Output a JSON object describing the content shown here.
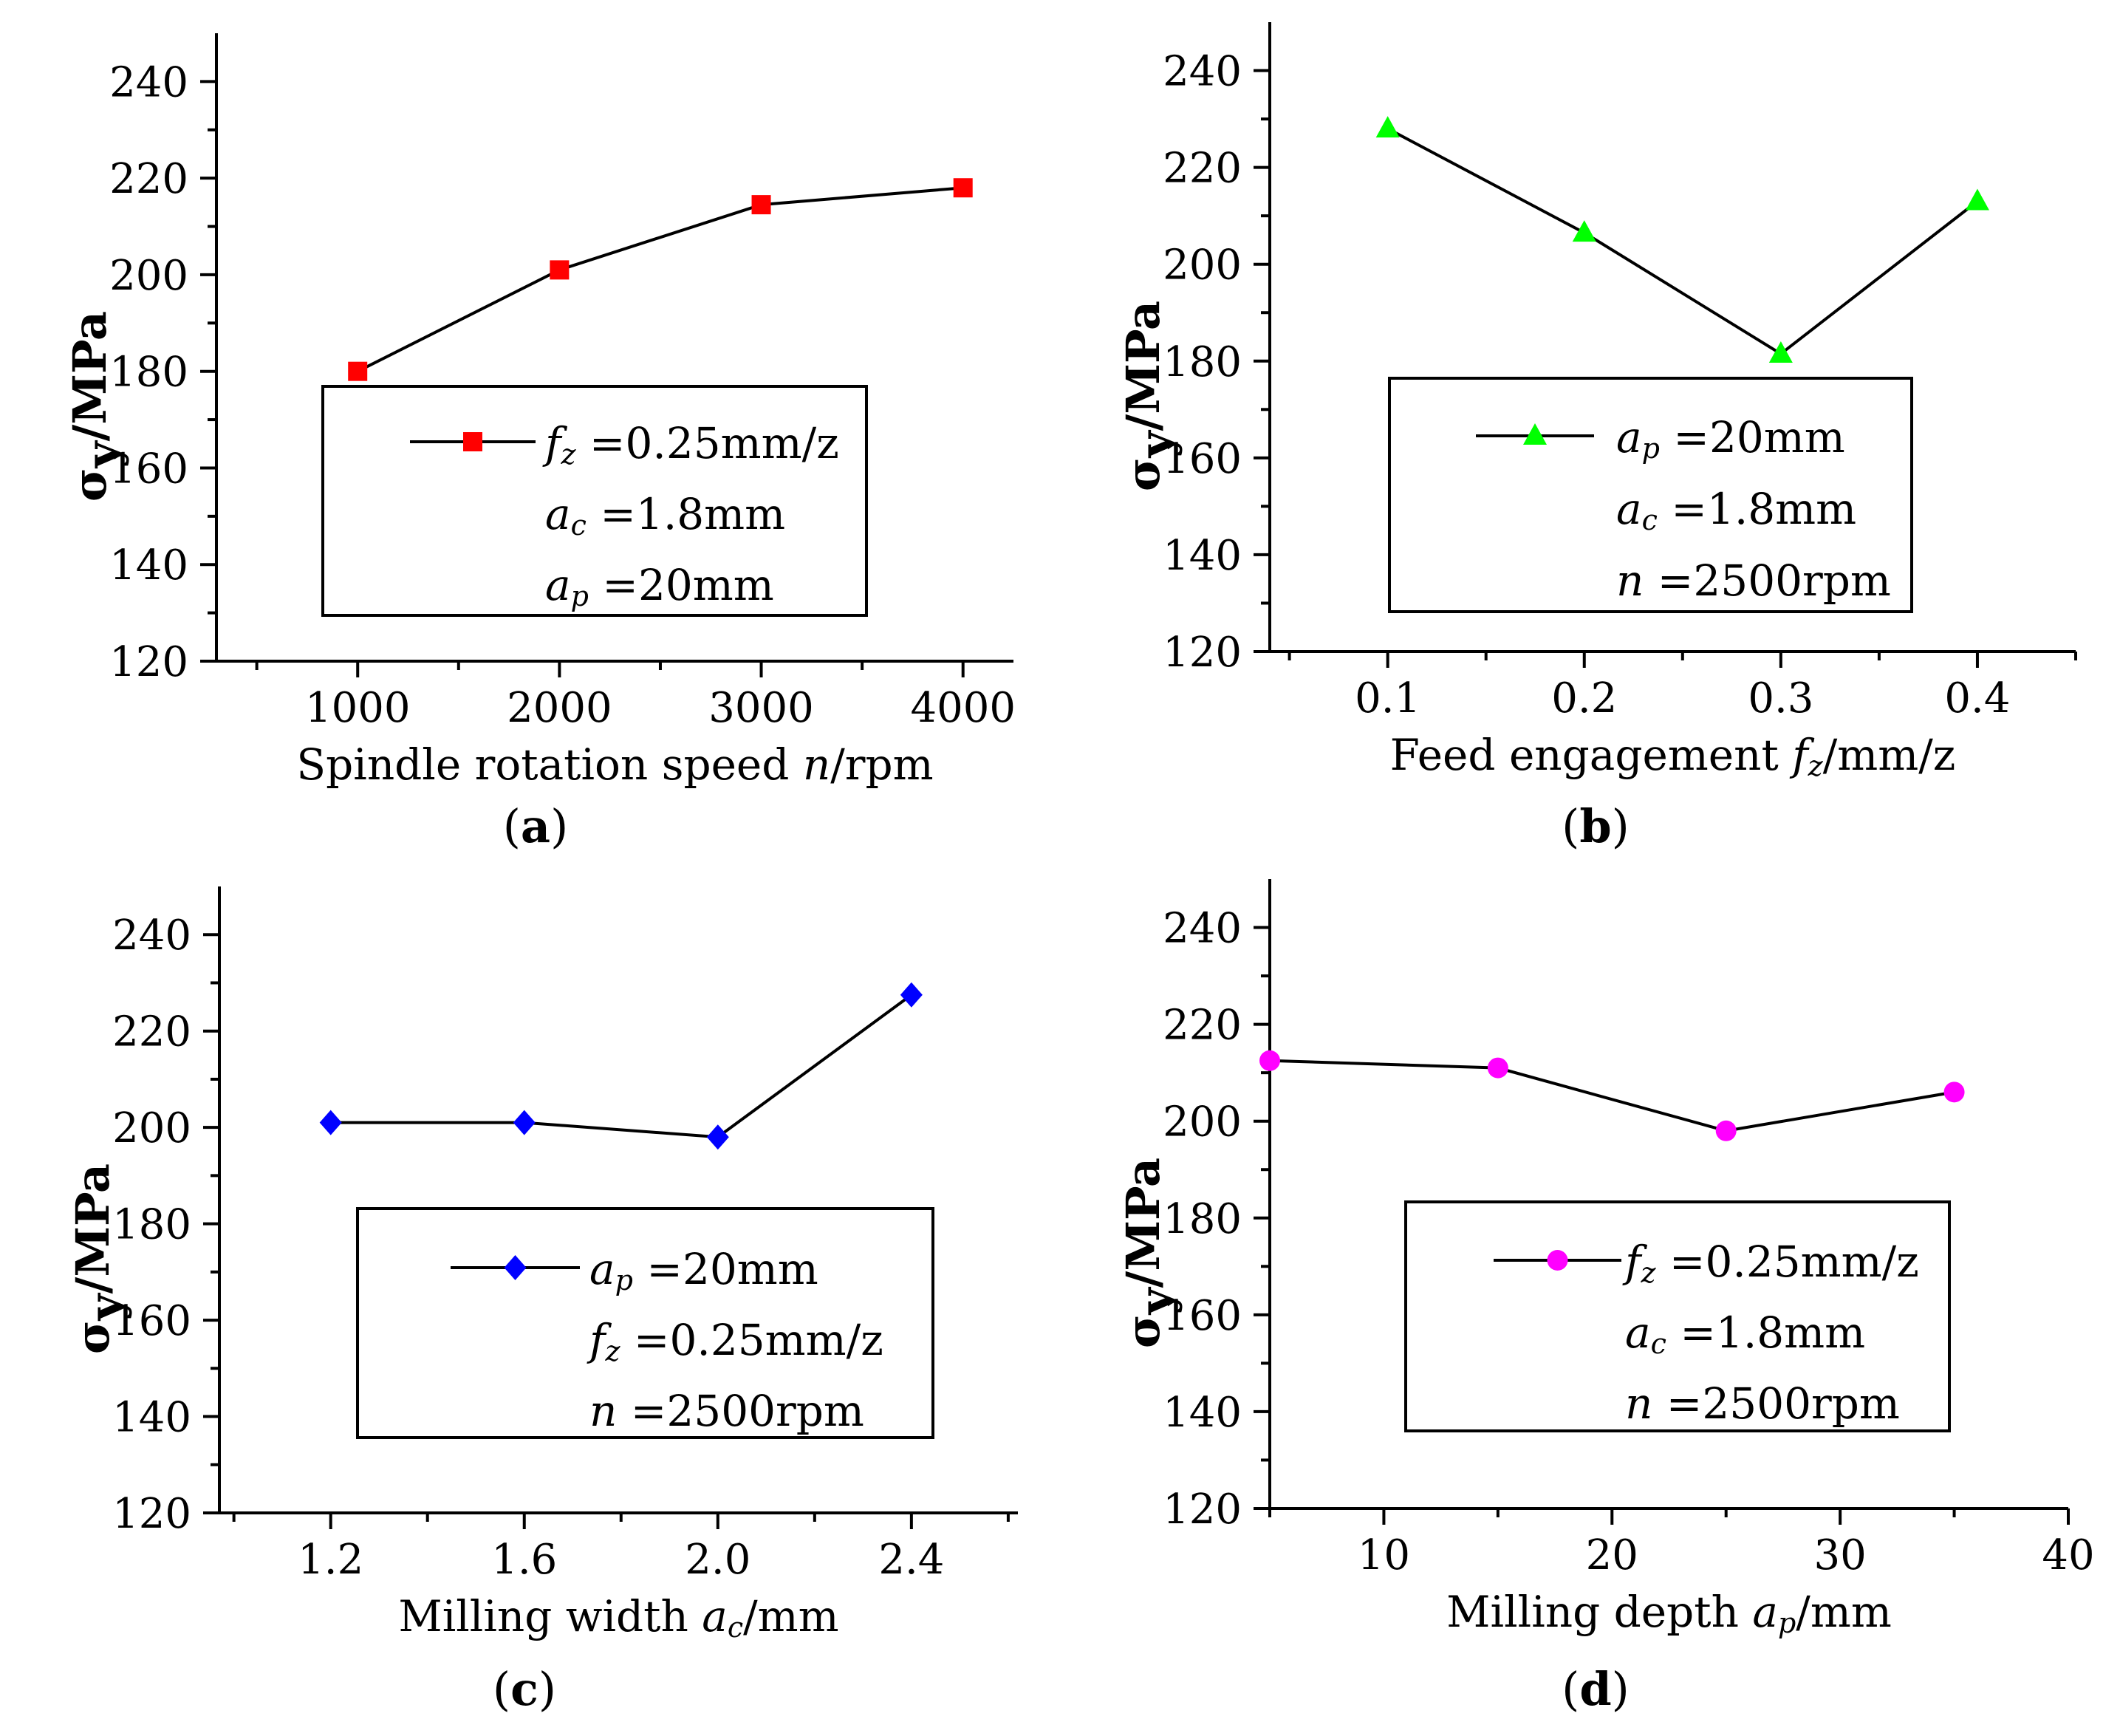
{
  "chart_data": [
    {
      "id": "a",
      "type": "line",
      "caption": "a",
      "xlabel": {
        "text": "Spindle rotation speed ",
        "var": "n",
        "sub": "",
        "unit": "/rpm"
      },
      "ylabel": {
        "main": "σ",
        "sub": "y",
        "unit": "/MPa"
      },
      "x": [
        1000,
        2000,
        3000,
        4000
      ],
      "values": [
        180,
        201,
        214.5,
        218
      ],
      "xlim": [
        300,
        4250
      ],
      "ylim": [
        120,
        250
      ],
      "xticks": [
        1000,
        2000,
        3000,
        4000
      ],
      "xtick_labels": [
        "1000",
        "2000",
        "3000",
        "4000"
      ],
      "yticks": [
        120,
        140,
        160,
        180,
        200,
        220,
        240
      ],
      "ytick_labels": [
        "120",
        "140",
        "160",
        "180",
        "200",
        "220",
        "240"
      ],
      "marker": "square",
      "color": "#ff0000",
      "legend": [
        {
          "var": "f",
          "sub": "z",
          "value": " =0.25mm/z"
        },
        {
          "var": "a",
          "sub": "c",
          "value": " =1.8mm"
        },
        {
          "var": "a",
          "sub": "p",
          "value": " =20mm"
        }
      ]
    },
    {
      "id": "b",
      "type": "line",
      "caption": "b",
      "xlabel": {
        "text": "Feed engagement ",
        "var": "f",
        "sub": "z",
        "unit": "/mm/z"
      },
      "ylabel": {
        "main": "σ",
        "sub": "y",
        "unit": "/MPa"
      },
      "x": [
        0.1,
        0.2,
        0.3,
        0.4
      ],
      "values": [
        228,
        206.5,
        181.5,
        213
      ],
      "xlim": [
        0.04,
        0.45
      ],
      "ylim": [
        120,
        250
      ],
      "xticks": [
        0.1,
        0.2,
        0.3,
        0.4
      ],
      "xtick_labels": [
        "0.1",
        "0.2",
        "0.3",
        "0.4"
      ],
      "yticks": [
        120,
        140,
        160,
        180,
        200,
        220,
        240
      ],
      "ytick_labels": [
        "120",
        "140",
        "160",
        "180",
        "200",
        "220",
        "240"
      ],
      "marker": "triangle",
      "color": "#00ff00",
      "legend": [
        {
          "var": "a",
          "sub": "p",
          "value": " =20mm"
        },
        {
          "var": "a",
          "sub": "c",
          "value": " =1.8mm"
        },
        {
          "var": "n",
          "sub": "",
          "value": " =2500rpm"
        }
      ]
    },
    {
      "id": "c",
      "type": "line",
      "caption": "c",
      "xlabel": {
        "text": "Milling width ",
        "var": "a",
        "sub": "c",
        "unit": "/mm"
      },
      "ylabel": {
        "main": "σ",
        "sub": "y",
        "unit": "/MPa"
      },
      "x": [
        1.2,
        1.6,
        2.0,
        2.4
      ],
      "values": [
        201,
        201,
        198,
        227.5
      ],
      "xlim": [
        0.97,
        2.62
      ],
      "ylim": [
        120,
        250
      ],
      "xticks": [
        1.2,
        1.6,
        2.0,
        2.4
      ],
      "xtick_labels": [
        "1.2",
        "1.6",
        "2.0",
        "2.4"
      ],
      "yticks": [
        120,
        140,
        160,
        180,
        200,
        220,
        240
      ],
      "ytick_labels": [
        "120",
        "140",
        "160",
        "180",
        "200",
        "220",
        "240"
      ],
      "marker": "diamond",
      "color": "#0000ff",
      "legend": [
        {
          "var": "a",
          "sub": "p",
          "value": " =20mm"
        },
        {
          "var": "f",
          "sub": "z",
          "value": " =0.25mm/z"
        },
        {
          "var": "n",
          "sub": "",
          "value": " =2500rpm"
        }
      ]
    },
    {
      "id": "d",
      "type": "line",
      "caption": "d",
      "xlabel": {
        "text": "Milling depth ",
        "var": "a",
        "sub": "p",
        "unit": "/mm"
      },
      "ylabel": {
        "main": "σ",
        "sub": "y",
        "unit": "/MPa"
      },
      "x": [
        5,
        15,
        25,
        35
      ],
      "values": [
        212.5,
        211,
        198,
        206
      ],
      "xlim": [
        5,
        40
      ],
      "ylim": [
        120,
        250
      ],
      "xticks": [
        10,
        20,
        30,
        40
      ],
      "xtick_labels": [
        "10",
        "20",
        "30",
        "40"
      ],
      "yticks": [
        120,
        140,
        160,
        180,
        200,
        220,
        240
      ],
      "ytick_labels": [
        "120",
        "140",
        "160",
        "180",
        "200",
        "220",
        "240"
      ],
      "marker": "circle",
      "color": "#ff00ff",
      "legend": [
        {
          "var": "f",
          "sub": "z",
          "value": " =0.25mm/z"
        },
        {
          "var": "a",
          "sub": "c",
          "value": " =1.8mm"
        },
        {
          "var": "n",
          "sub": "",
          "value": " =2500rpm"
        }
      ]
    }
  ]
}
